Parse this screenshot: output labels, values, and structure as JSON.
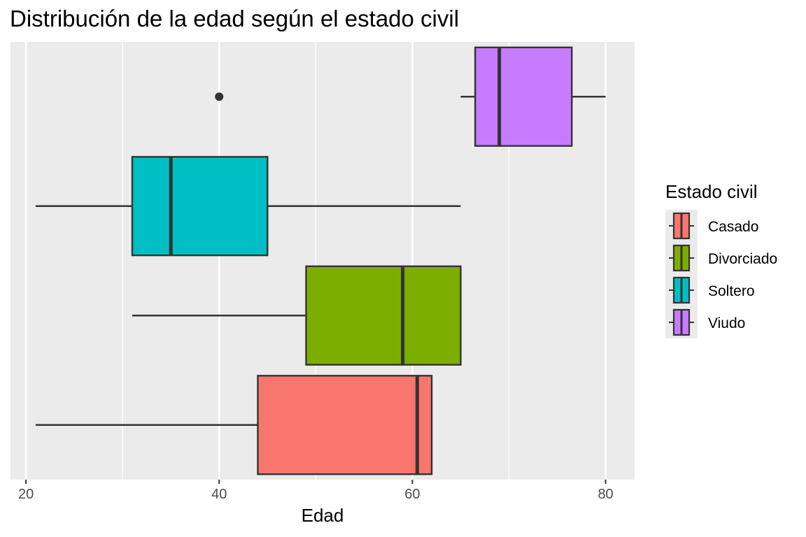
{
  "chart_data": {
    "type": "boxplot",
    "orientation": "horizontal",
    "title": "Distribución de la edad según el estado civil",
    "xlabel": "Edad",
    "ylabel": "",
    "xlim": [
      18.4,
      83.0
    ],
    "x_ticks": [
      20,
      40,
      60,
      80
    ],
    "x_tick_labels": [
      "20",
      "40",
      "60",
      "80"
    ],
    "grid": true,
    "legend": {
      "title": "Estado civil",
      "position": "right"
    },
    "groups": [
      {
        "name": "Casado",
        "color": "#F8766D",
        "whisker_low": 21,
        "q1": 44,
        "median": 60.5,
        "q3": 62,
        "whisker_high": 62,
        "outliers": []
      },
      {
        "name": "Divorciado",
        "color": "#7CAE00",
        "whisker_low": 31,
        "q1": 49,
        "median": 59,
        "q3": 65,
        "whisker_high": 65,
        "outliers": []
      },
      {
        "name": "Soltero",
        "color": "#00BFC4",
        "whisker_low": 21,
        "q1": 31,
        "median": 35,
        "q3": 45,
        "whisker_high": 65,
        "outliers": []
      },
      {
        "name": "Viudo",
        "color": "#C77CFF",
        "whisker_low": 65,
        "q1": 66.5,
        "median": 69,
        "q3": 76.5,
        "whisker_high": 80,
        "outliers": [
          40
        ]
      }
    ]
  }
}
